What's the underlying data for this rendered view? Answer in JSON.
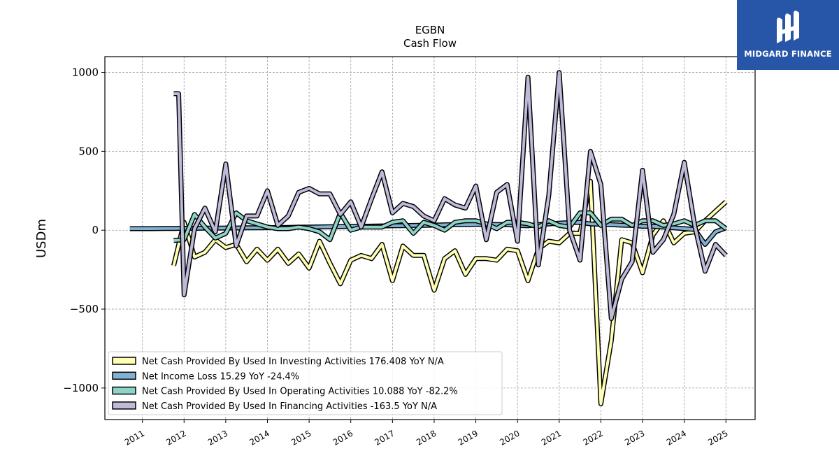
{
  "brand": {
    "name": "MIDGARD FINANCE",
    "bg": "#2756a8"
  },
  "chart_data": {
    "type": "line",
    "title": "EGBN",
    "subtitle": "Cash Flow",
    "ylabel": "USDm",
    "xlabel": "",
    "ylim": [
      -1200,
      1100
    ],
    "xlim": [
      2010.1,
      2025.7
    ],
    "yticks": [
      -1000,
      -500,
      0,
      500,
      1000
    ],
    "ytick_labels": [
      "−1000",
      "−500",
      "0",
      "500",
      "1000"
    ],
    "xticks": [
      2011,
      2012,
      2013,
      2014,
      2015,
      2016,
      2017,
      2018,
      2019,
      2020,
      2021,
      2022,
      2023,
      2024,
      2025
    ],
    "xtick_labels": [
      "2011",
      "2012",
      "2013",
      "2014",
      "2015",
      "2016",
      "2017",
      "2018",
      "2019",
      "2020",
      "2021",
      "2022",
      "2023",
      "2024",
      "2025"
    ],
    "grid": true,
    "legend_position": "lower-left",
    "series": [
      {
        "name": "Net Cash Provided By Used In Investing Activities",
        "legend_label": "Net Cash Provided By Used In Investing Activities  176.408 YoY N/A",
        "color": "#ffffb3",
        "x": [
          2011.75,
          2012.0,
          2012.25,
          2012.5,
          2012.75,
          2013.0,
          2013.25,
          2013.5,
          2013.75,
          2014.0,
          2014.25,
          2014.5,
          2014.75,
          2015.0,
          2015.25,
          2015.5,
          2015.75,
          2016.0,
          2016.25,
          2016.5,
          2016.75,
          2017.0,
          2017.25,
          2017.5,
          2017.75,
          2018.0,
          2018.25,
          2018.5,
          2018.75,
          2019.0,
          2019.25,
          2019.5,
          2019.75,
          2020.0,
          2020.25,
          2020.5,
          2020.75,
          2021.0,
          2021.25,
          2021.5,
          2021.75,
          2022.0,
          2022.25,
          2022.5,
          2022.75,
          2023.0,
          2023.25,
          2023.5,
          2023.75,
          2024.0,
          2024.25,
          2024.5,
          2024.75,
          2025.0
        ],
        "values": [
          -225,
          50,
          -170,
          -140,
          -60,
          -110,
          -90,
          -200,
          -120,
          -190,
          -120,
          -210,
          -150,
          -240,
          -70,
          -210,
          -340,
          -190,
          -160,
          -180,
          -90,
          -320,
          -100,
          -160,
          -160,
          -380,
          -180,
          -130,
          -280,
          -180,
          -180,
          -190,
          -120,
          -130,
          -320,
          -120,
          -70,
          -80,
          -20,
          -20,
          310,
          -1100,
          -700,
          -60,
          -80,
          -270,
          -30,
          60,
          -80,
          -20,
          -10,
          60,
          120,
          180
        ]
      },
      {
        "name": "Net Income Loss",
        "legend_label": "Net Income Loss  15.29 YoY -24.4%",
        "color": "#80b1d3",
        "x": [
          2010.7,
          2011.0,
          2011.25,
          2011.5,
          2011.75,
          2012.0,
          2012.25,
          2012.5,
          2012.75,
          2013.0,
          2013.25,
          2013.5,
          2013.75,
          2014.0,
          2014.25,
          2014.5,
          2014.75,
          2015.0,
          2015.25,
          2015.5,
          2015.75,
          2016.0,
          2016.25,
          2016.5,
          2016.75,
          2017.0,
          2017.25,
          2017.5,
          2017.75,
          2018.0,
          2018.25,
          2018.5,
          2018.75,
          2019.0,
          2019.25,
          2019.5,
          2019.75,
          2020.0,
          2020.25,
          2020.5,
          2020.75,
          2021.0,
          2021.25,
          2021.5,
          2021.75,
          2022.0,
          2022.25,
          2022.5,
          2022.75,
          2023.0,
          2023.25,
          2023.5,
          2023.75,
          2024.0,
          2024.25,
          2024.5,
          2024.75,
          2025.0
        ],
        "values": [
          10,
          10,
          10,
          11,
          11,
          12,
          12,
          13,
          13,
          14,
          14,
          15,
          15,
          16,
          17,
          18,
          19,
          20,
          21,
          22,
          23,
          24,
          25,
          26,
          27,
          28,
          29,
          30,
          31,
          32,
          34,
          35,
          36,
          37,
          37,
          36,
          35,
          30,
          28,
          36,
          40,
          45,
          48,
          50,
          40,
          38,
          35,
          32,
          30,
          25,
          25,
          20,
          15,
          10,
          5,
          -90,
          -10,
          15
        ]
      },
      {
        "name": "Net Cash Provided By Used In Operating Activities",
        "legend_label": "Net Cash Provided By Used In Operating Activities  10.088 YoY -82.2%",
        "color": "#8dd3c7",
        "x": [
          2011.75,
          2012.0,
          2012.25,
          2012.5,
          2012.75,
          2013.0,
          2013.25,
          2013.5,
          2013.75,
          2014.0,
          2014.25,
          2014.5,
          2014.75,
          2015.0,
          2015.25,
          2015.5,
          2015.75,
          2016.0,
          2016.25,
          2016.5,
          2016.75,
          2017.0,
          2017.25,
          2017.5,
          2017.75,
          2018.0,
          2018.25,
          2018.5,
          2018.75,
          2019.0,
          2019.25,
          2019.5,
          2019.75,
          2020.0,
          2020.25,
          2020.5,
          2020.75,
          2021.0,
          2021.25,
          2021.5,
          2021.75,
          2022.0,
          2022.25,
          2022.5,
          2022.75,
          2023.0,
          2023.25,
          2023.5,
          2023.75,
          2024.0,
          2024.25,
          2024.5,
          2024.75,
          2025.0
        ],
        "values": [
          -65,
          -60,
          100,
          20,
          -50,
          -20,
          110,
          60,
          40,
          20,
          10,
          10,
          20,
          10,
          -10,
          -60,
          110,
          0,
          20,
          20,
          20,
          50,
          60,
          -20,
          50,
          30,
          0,
          50,
          60,
          60,
          40,
          10,
          50,
          50,
          40,
          20,
          60,
          30,
          20,
          110,
          110,
          30,
          70,
          70,
          30,
          60,
          60,
          30,
          40,
          60,
          30,
          60,
          60,
          10
        ]
      },
      {
        "name": "Net Cash Provided By Used In Financing Activities",
        "legend_label": "Net Cash Provided By Used In Financing Activities  -163.5 YoY N/A",
        "color": "#bebada",
        "x": [
          2011.75,
          2011.87,
          2012.0,
          2012.25,
          2012.5,
          2012.75,
          2013.0,
          2013.25,
          2013.5,
          2013.75,
          2014.0,
          2014.25,
          2014.5,
          2014.75,
          2015.0,
          2015.25,
          2015.5,
          2015.75,
          2016.0,
          2016.25,
          2016.5,
          2016.75,
          2017.0,
          2017.25,
          2017.5,
          2017.75,
          2018.0,
          2018.25,
          2018.5,
          2018.75,
          2019.0,
          2019.25,
          2019.5,
          2019.75,
          2020.0,
          2020.25,
          2020.5,
          2020.75,
          2021.0,
          2021.25,
          2021.5,
          2021.75,
          2022.0,
          2022.25,
          2022.5,
          2022.75,
          2023.0,
          2023.25,
          2023.5,
          2023.75,
          2024.0,
          2024.25,
          2024.5,
          2024.75,
          2025.0
        ],
        "values": [
          865,
          865,
          -410,
          10,
          140,
          -10,
          420,
          -100,
          90,
          90,
          250,
          30,
          90,
          240,
          265,
          230,
          230,
          100,
          180,
          20,
          200,
          370,
          110,
          170,
          150,
          90,
          60,
          200,
          160,
          140,
          280,
          -60,
          240,
          290,
          -70,
          970,
          -220,
          220,
          1000,
          0,
          -190,
          500,
          290,
          -560,
          -310,
          -200,
          380,
          -140,
          -60,
          100,
          430,
          30,
          -260,
          -90,
          -160
        ]
      }
    ]
  }
}
